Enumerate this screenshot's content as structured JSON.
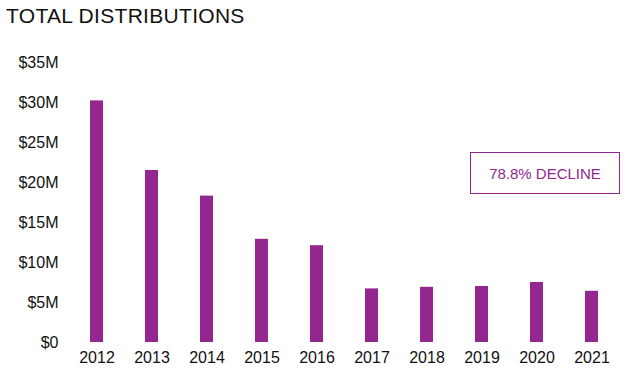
{
  "chart_data": {
    "type": "bar",
    "title": "TOTAL DISTRIBUTIONS",
    "categories": [
      "2012",
      "2013",
      "2014",
      "2015",
      "2016",
      "2017",
      "2018",
      "2019",
      "2020",
      "2021"
    ],
    "values": [
      30.2,
      21.5,
      18.3,
      12.9,
      12.1,
      6.7,
      6.9,
      7.0,
      7.5,
      6.4
    ],
    "color": "#93278f",
    "ylim": [
      0,
      35
    ],
    "yticks": [
      {
        "value": 0,
        "label": "$0"
      },
      {
        "value": 5,
        "label": "$5M"
      },
      {
        "value": 10,
        "label": "$10M"
      },
      {
        "value": 15,
        "label": "$15M"
      },
      {
        "value": 20,
        "label": "$20M"
      },
      {
        "value": 25,
        "label": "$25M"
      },
      {
        "value": 30,
        "label": "$30M"
      },
      {
        "value": 35,
        "label": "$35M"
      }
    ],
    "grid": false,
    "annotation": "78.8% DECLINE"
  }
}
